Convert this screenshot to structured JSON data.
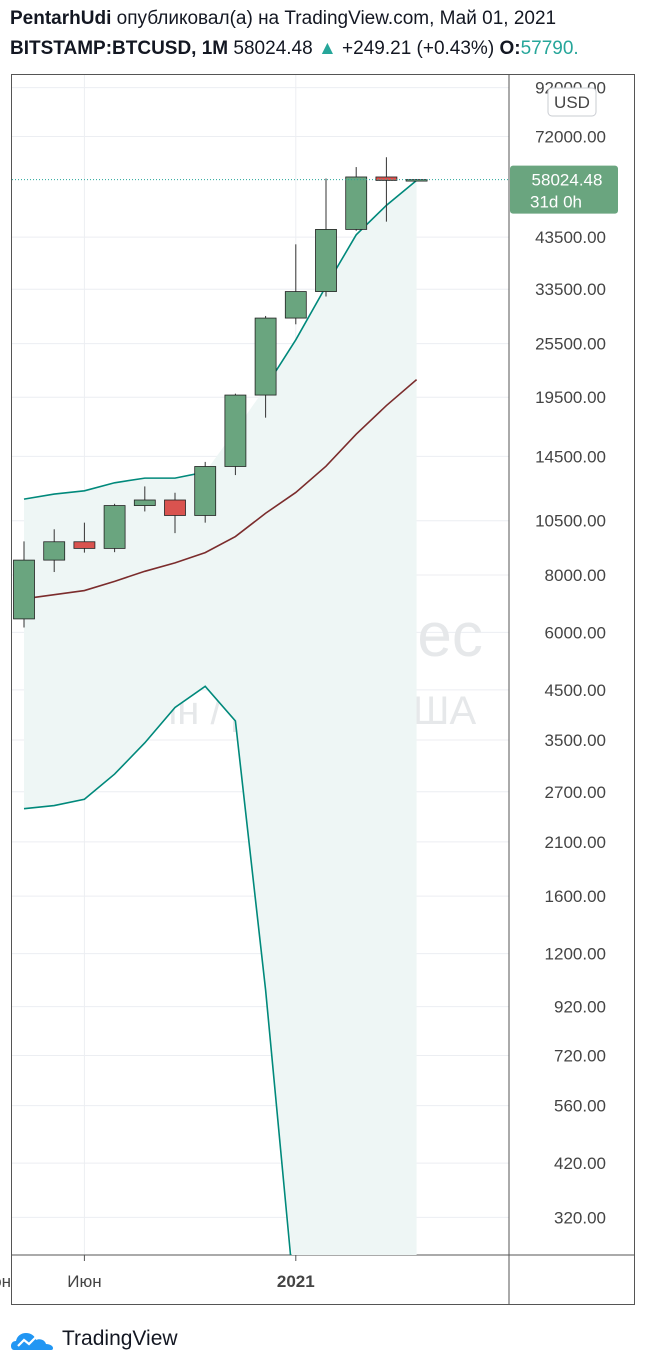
{
  "header": {
    "author": "PentarhUdi",
    "published_text": "опубликовал(а) на TradingView.com, Май 01, 2021",
    "symbol": "BITSTAMP:BTCUSD, 1M",
    "last_price": "58024.48",
    "change_arrow": "▲",
    "change": "+249.21 (+0.43%)",
    "open_label": "O:",
    "open_value": "57790."
  },
  "footer": {
    "brand": "TradingView",
    "logo_icon": "tradingview-logo-icon"
  },
  "colors": {
    "up": "#26a69a",
    "candle_up_fill": "#6aa57f",
    "candle_down_fill": "#d9534f",
    "channel_line": "#00897b",
    "channel_fill": "#eef6f5",
    "ma_line": "#7b2c2c",
    "price_tag": "#6aa57f"
  },
  "chart_data": {
    "type": "candlestick",
    "scale": "log",
    "currency_button": "USD",
    "watermark_symbol": "BTCUSD, 1Мес",
    "watermark_name": "Биткоин / Доллар США",
    "price_tag": {
      "price": "58024.48",
      "countdown": "31d 0h"
    },
    "y_ticks": [
      92000,
      72000,
      43500,
      33500,
      25500,
      19500,
      14500,
      10500,
      8000,
      6000,
      4500,
      3500,
      2700,
      2100,
      1600,
      1200,
      920,
      720,
      560,
      420,
      320
    ],
    "y_tick_labels": [
      "92000.00",
      "72000.00",
      "43500.00",
      "33500.00",
      "25500.00",
      "19500.00",
      "14500.00",
      "10500.00",
      "8000.00",
      "6000.00",
      "4500.00",
      "3500.00",
      "2700.00",
      "2100.00",
      "1600.00",
      "1200.00",
      "920.00",
      "720.00",
      "560.00",
      "420.00",
      "320.00"
    ],
    "ylim": [
      265,
      98000
    ],
    "x_labels": [
      {
        "label": "Июн",
        "month": "2020-06",
        "bold": false
      },
      {
        "label": "2021",
        "month": "2021-01",
        "bold": true
      },
      {
        "label": "Июн",
        "month": "2021-06",
        "bold": false
      }
    ],
    "months": [
      "2020-04",
      "2020-05",
      "2020-06",
      "2020-07",
      "2020-08",
      "2020-09",
      "2020-10",
      "2020-11",
      "2020-12",
      "2021-01",
      "2021-02",
      "2021-03",
      "2021-04",
      "2021-05"
    ],
    "candles": [
      {
        "o": 6420,
        "h": 9470,
        "l": 6150,
        "c": 8620
      },
      {
        "o": 8620,
        "h": 10060,
        "l": 8120,
        "c": 9450
      },
      {
        "o": 9450,
        "h": 10400,
        "l": 8950,
        "c": 9140
      },
      {
        "o": 9140,
        "h": 11430,
        "l": 8970,
        "c": 11330
      },
      {
        "o": 11330,
        "h": 12470,
        "l": 11000,
        "c": 11650
      },
      {
        "o": 11650,
        "h": 12080,
        "l": 9870,
        "c": 10780
      },
      {
        "o": 10780,
        "h": 14100,
        "l": 10400,
        "c": 13780
      },
      {
        "o": 13780,
        "h": 19850,
        "l": 13200,
        "c": 19710
      },
      {
        "o": 19710,
        "h": 29300,
        "l": 17600,
        "c": 28990
      },
      {
        "o": 28990,
        "h": 41950,
        "l": 28100,
        "c": 33110
      },
      {
        "o": 33110,
        "h": 58350,
        "l": 32300,
        "c": 45200
      },
      {
        "o": 45200,
        "h": 61780,
        "l": 44900,
        "c": 58790
      },
      {
        "o": 58790,
        "h": 64900,
        "l": 47000,
        "c": 57790
      },
      {
        "o": 57790,
        "h": 58100,
        "l": 57500,
        "c": 58024.48
      }
    ],
    "series": [
      {
        "name": "upper_band",
        "values": [
          11700,
          12000,
          12200,
          12700,
          13000,
          13000,
          13400,
          null,
          null,
          null,
          null,
          null,
          null,
          null
        ]
      },
      {
        "name": "middle_band",
        "values": [
          null,
          null,
          null,
          null,
          null,
          null,
          null,
          null,
          20500,
          26000,
          34000,
          44000,
          51000,
          57790
        ]
      },
      {
        "name": "lower_band",
        "values": [
          2480,
          2520,
          2600,
          2950,
          3450,
          4120,
          4580,
          3850,
          1000,
          200,
          null,
          null,
          null,
          null
        ]
      },
      {
        "name": "moving_average",
        "values": [
          7100,
          7250,
          7400,
          7750,
          8150,
          8500,
          8950,
          9700,
          10900,
          12100,
          13800,
          16200,
          18700,
          21300
        ]
      }
    ]
  }
}
